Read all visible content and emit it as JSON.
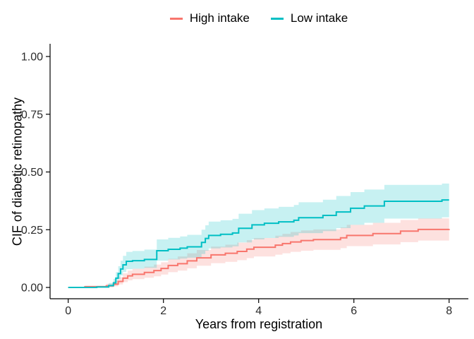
{
  "figure": {
    "background": "#ffffff"
  },
  "legend": {
    "position": "top-center",
    "items": [
      {
        "label": "High intake",
        "color": "#F8766D"
      },
      {
        "label": "Low intake",
        "color": "#00BFC4"
      }
    ]
  },
  "axes": {
    "axis_line_color": "#000000",
    "tick_label_color": "#2b2b2b",
    "tick_length": 6
  },
  "chart_data": {
    "type": "line",
    "subtype": "step-cumulative-incidence-with-confidence-bands",
    "title": "",
    "xlabel": "Years from registration",
    "ylabel": "CIF of diabetic retinopathy",
    "xlim": [
      0,
      8
    ],
    "ylim": [
      0,
      1
    ],
    "grid": false,
    "legend_position": "top",
    "x_ticks": [
      {
        "v": 0,
        "label": "0"
      },
      {
        "v": 2,
        "label": "2"
      },
      {
        "v": 4,
        "label": "4"
      },
      {
        "v": 6,
        "label": "6"
      },
      {
        "v": 8,
        "label": "8"
      }
    ],
    "y_ticks": [
      {
        "v": 0.0,
        "label": "0.00"
      },
      {
        "v": 0.25,
        "label": "0.25"
      },
      {
        "v": 0.5,
        "label": "0.50"
      },
      {
        "v": 0.75,
        "label": "0.75"
      },
      {
        "v": 1.0,
        "label": "1.00"
      }
    ],
    "band_opacity": 0.22,
    "series": [
      {
        "name": "High intake",
        "color": "#F8766D",
        "points": [
          [
            0,
            0,
            0,
            0
          ],
          [
            0.35,
            0.003,
            0.0,
            0.008
          ],
          [
            0.8,
            0.007,
            0.001,
            0.016
          ],
          [
            0.95,
            0.014,
            0.005,
            0.027
          ],
          [
            1.05,
            0.026,
            0.013,
            0.044
          ],
          [
            1.15,
            0.04,
            0.023,
            0.061
          ],
          [
            1.25,
            0.05,
            0.031,
            0.073
          ],
          [
            1.35,
            0.057,
            0.036,
            0.081
          ],
          [
            1.6,
            0.065,
            0.042,
            0.09
          ],
          [
            1.8,
            0.073,
            0.048,
            0.099
          ],
          [
            1.95,
            0.082,
            0.056,
            0.109
          ],
          [
            2.1,
            0.095,
            0.066,
            0.124
          ],
          [
            2.3,
            0.103,
            0.073,
            0.134
          ],
          [
            2.5,
            0.115,
            0.083,
            0.148
          ],
          [
            2.7,
            0.128,
            0.094,
            0.162
          ],
          [
            3.0,
            0.141,
            0.105,
            0.177
          ],
          [
            3.3,
            0.148,
            0.111,
            0.185
          ],
          [
            3.55,
            0.156,
            0.118,
            0.194
          ],
          [
            3.75,
            0.166,
            0.127,
            0.205
          ],
          [
            3.9,
            0.174,
            0.134,
            0.214
          ],
          [
            4.35,
            0.183,
            0.142,
            0.224
          ],
          [
            4.5,
            0.19,
            0.148,
            0.232
          ],
          [
            4.67,
            0.197,
            0.154,
            0.24
          ],
          [
            4.89,
            0.203,
            0.159,
            0.247
          ],
          [
            5.15,
            0.207,
            0.163,
            0.251
          ],
          [
            5.72,
            0.215,
            0.17,
            0.26
          ],
          [
            5.85,
            0.225,
            0.179,
            0.271
          ],
          [
            6.4,
            0.233,
            0.186,
            0.28
          ],
          [
            6.98,
            0.244,
            0.196,
            0.292
          ],
          [
            7.35,
            0.251,
            0.203,
            0.299
          ],
          [
            8.0,
            0.253,
            0.205,
            0.301
          ]
        ]
      },
      {
        "name": "Low intake",
        "color": "#00BFC4",
        "points": [
          [
            0,
            0,
            0,
            0
          ],
          [
            0.6,
            0.002,
            0.0,
            0.007
          ],
          [
            0.85,
            0.008,
            0.002,
            0.019
          ],
          [
            0.95,
            0.02,
            0.009,
            0.037
          ],
          [
            1.0,
            0.04,
            0.022,
            0.066
          ],
          [
            1.05,
            0.06,
            0.037,
            0.092
          ],
          [
            1.1,
            0.08,
            0.052,
            0.116
          ],
          [
            1.15,
            0.098,
            0.067,
            0.137
          ],
          [
            1.22,
            0.113,
            0.079,
            0.154
          ],
          [
            1.35,
            0.116,
            0.081,
            0.158
          ],
          [
            1.6,
            0.121,
            0.085,
            0.164
          ],
          [
            1.86,
            0.159,
            0.116,
            0.208
          ],
          [
            2.1,
            0.165,
            0.121,
            0.215
          ],
          [
            2.35,
            0.17,
            0.125,
            0.221
          ],
          [
            2.5,
            0.176,
            0.129,
            0.228
          ],
          [
            2.8,
            0.195,
            0.145,
            0.25
          ],
          [
            2.88,
            0.212,
            0.159,
            0.269
          ],
          [
            2.95,
            0.225,
            0.169,
            0.285
          ],
          [
            3.2,
            0.23,
            0.173,
            0.291
          ],
          [
            3.45,
            0.236,
            0.178,
            0.297
          ],
          [
            3.58,
            0.256,
            0.195,
            0.319
          ],
          [
            3.86,
            0.271,
            0.208,
            0.335
          ],
          [
            4.12,
            0.278,
            0.214,
            0.342
          ],
          [
            4.42,
            0.284,
            0.219,
            0.349
          ],
          [
            4.74,
            0.291,
            0.225,
            0.357
          ],
          [
            4.84,
            0.302,
            0.235,
            0.369
          ],
          [
            5.35,
            0.312,
            0.244,
            0.38
          ],
          [
            5.63,
            0.327,
            0.257,
            0.396
          ],
          [
            5.93,
            0.343,
            0.271,
            0.413
          ],
          [
            6.22,
            0.353,
            0.28,
            0.424
          ],
          [
            6.64,
            0.373,
            0.298,
            0.444
          ],
          [
            7.85,
            0.379,
            0.304,
            0.45
          ],
          [
            8.0,
            0.379,
            0.304,
            0.45
          ]
        ]
      }
    ]
  }
}
